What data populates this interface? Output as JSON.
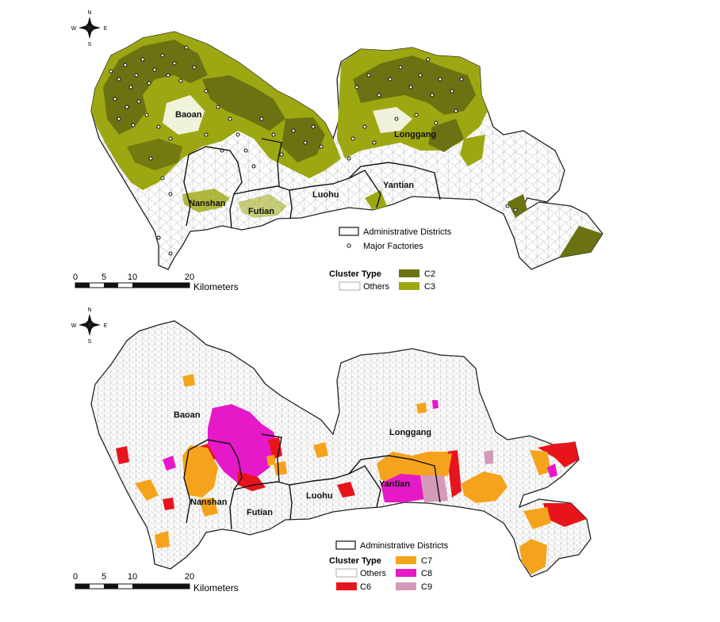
{
  "maps": [
    {
      "compass": {
        "n": "N",
        "s": "S",
        "e": "E",
        "w": "W"
      },
      "districts": {
        "baoan": "Baoan",
        "nanshan": "Nanshan",
        "futian": "Futian",
        "luohu": "Luohu",
        "yantian": "Yantian",
        "longgang": "Longgang"
      },
      "legend": {
        "districts_label": "Administrative Districts",
        "factories_label": "Major Factories",
        "cluster_title": "Cluster Type",
        "items": [
          {
            "label": "C2",
            "color": "#6b7212"
          },
          {
            "label": "Others",
            "color": "#ffffff"
          },
          {
            "label": "C3",
            "color": "#9da712"
          }
        ]
      },
      "scalebar": {
        "ticks": [
          "0",
          "5",
          "10",
          "20"
        ],
        "unit": "Kilometers"
      }
    },
    {
      "compass": {
        "n": "N",
        "s": "S",
        "e": "E",
        "w": "W"
      },
      "districts": {
        "baoan": "Baoan",
        "nanshan": "Nanshan",
        "futian": "Futian",
        "luohu": "Luohu",
        "yantian": "Yantian",
        "longgang": "Longgang"
      },
      "legend": {
        "districts_label": "Administrative Districts",
        "cluster_title": "Cluster Type",
        "items": [
          {
            "label": "C7",
            "color": "#f5a31c"
          },
          {
            "label": "Others",
            "color": "#ffffff"
          },
          {
            "label": "C8",
            "color": "#e619c8"
          },
          {
            "label": "C6",
            "color": "#e8141c"
          },
          {
            "label": "C9",
            "color": "#d49bb9"
          }
        ]
      },
      "scalebar": {
        "ticks": [
          "0",
          "5",
          "10",
          "20"
        ],
        "unit": "Kilometers"
      }
    }
  ]
}
